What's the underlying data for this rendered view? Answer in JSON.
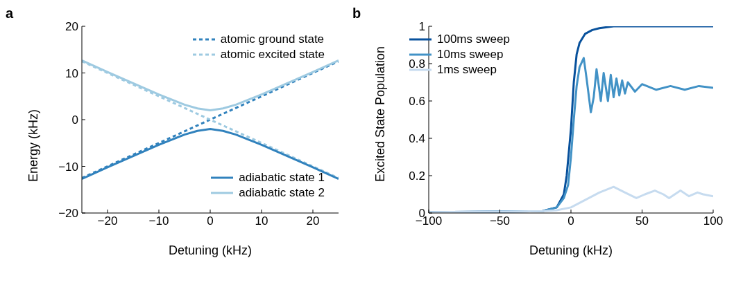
{
  "chart_data": [
    {
      "type": "line",
      "title": "a",
      "xlabel": "Detuning (kHz)",
      "ylabel": "Energy (kHz)",
      "xlim": [
        -25,
        25
      ],
      "xticks": [
        -20,
        -10,
        0,
        10,
        20
      ],
      "ylim": [
        -20,
        20
      ],
      "yticks": [
        -20,
        -10,
        0,
        10,
        20
      ],
      "legend": "right",
      "series": [
        {
          "name": "atomic ground state",
          "color": "#3182bd",
          "line_style": "dashed",
          "x": [
            -25,
            0,
            25
          ],
          "values": [
            -12.5,
            0,
            12.5
          ]
        },
        {
          "name": "atomic excited state",
          "color": "#9ecae1",
          "line_style": "dashed",
          "x": [
            -25,
            0,
            25
          ],
          "values": [
            12.5,
            0,
            -12.5
          ]
        },
        {
          "name": "adiabatic state 1",
          "color": "#3182bd",
          "line_style": "solid",
          "x": [
            -25,
            -20,
            -15,
            -10,
            -5,
            -2.5,
            0,
            2.5,
            5,
            10,
            15,
            20,
            25
          ],
          "values": [
            -12.7,
            -10.2,
            -7.8,
            -5.4,
            -3.2,
            -2.4,
            -2,
            -2.4,
            -3.2,
            -5.4,
            -7.8,
            -10.2,
            -12.7
          ]
        },
        {
          "name": "adiabatic state 2",
          "color": "#9ecae1",
          "line_style": "solid",
          "x": [
            -25,
            -20,
            -15,
            -10,
            -5,
            -2.5,
            0,
            2.5,
            5,
            10,
            15,
            20,
            25
          ],
          "values": [
            12.7,
            10.2,
            7.8,
            5.4,
            3.2,
            2.4,
            2,
            2.4,
            3.2,
            5.4,
            7.8,
            10.2,
            12.7
          ]
        }
      ]
    },
    {
      "type": "line",
      "title": "b",
      "xlabel": "Detuning (kHz)",
      "ylabel": "Excited State Population",
      "xlim": [
        -100,
        100
      ],
      "xticks": [
        -100,
        -50,
        0,
        50,
        100
      ],
      "ylim": [
        0,
        1
      ],
      "yticks": [
        0,
        0.2,
        0.4,
        0.6,
        0.8,
        1
      ],
      "legend": "top left",
      "series": [
        {
          "name": "100ms sweep",
          "color": "#08519c",
          "x": [
            -100,
            -50,
            -20,
            -10,
            -5,
            -3,
            0,
            2,
            4,
            6,
            10,
            15,
            20,
            30,
            50,
            100
          ],
          "values": [
            0.005,
            0.007,
            0.01,
            0.03,
            0.1,
            0.2,
            0.45,
            0.7,
            0.85,
            0.91,
            0.96,
            0.98,
            0.99,
            1,
            1,
            1
          ]
        },
        {
          "name": "10ms sweep",
          "color": "#4292c6",
          "x": [
            -100,
            -50,
            -20,
            -10,
            -5,
            -2,
            0,
            2,
            4,
            6,
            9,
            11,
            14,
            16,
            18,
            21,
            23,
            26,
            28,
            30,
            32,
            34,
            36,
            38,
            40,
            45,
            50,
            60,
            70,
            80,
            90,
            100
          ],
          "values": [
            0.005,
            0.007,
            0.01,
            0.03,
            0.08,
            0.15,
            0.3,
            0.5,
            0.68,
            0.78,
            0.83,
            0.72,
            0.54,
            0.62,
            0.77,
            0.6,
            0.75,
            0.6,
            0.74,
            0.62,
            0.72,
            0.63,
            0.71,
            0.64,
            0.7,
            0.65,
            0.69,
            0.66,
            0.68,
            0.66,
            0.68,
            0.67
          ]
        },
        {
          "name": "1ms sweep",
          "color": "#c6dbef",
          "x": [
            -100,
            -50,
            -20,
            -10,
            0,
            10,
            20,
            30,
            38,
            46,
            52,
            59,
            65,
            69,
            77,
            83,
            89,
            93,
            100
          ],
          "values": [
            0.005,
            0.007,
            0.01,
            0.015,
            0.03,
            0.07,
            0.11,
            0.14,
            0.11,
            0.08,
            0.1,
            0.12,
            0.1,
            0.08,
            0.12,
            0.09,
            0.11,
            0.1,
            0.09
          ]
        }
      ]
    }
  ]
}
